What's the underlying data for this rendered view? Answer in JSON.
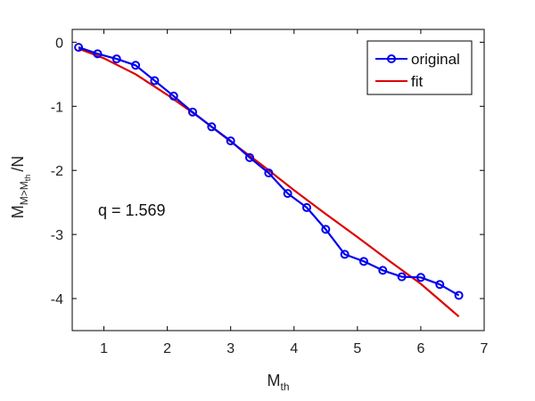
{
  "chart_data": {
    "type": "line",
    "xlabel": {
      "base": "M",
      "sub": "th"
    },
    "ylabel": {
      "base": "M",
      "sub": "M>M",
      "subsub": "th",
      "suffix": "/N"
    },
    "xlim": [
      0.5,
      7
    ],
    "ylim": [
      -4.5,
      0.2
    ],
    "xticks": [
      1,
      2,
      3,
      4,
      5,
      6,
      7
    ],
    "yticks": [
      0,
      -1,
      -2,
      -3,
      -4
    ],
    "xtick_labels": [
      "1",
      "2",
      "3",
      "4",
      "5",
      "6",
      "7"
    ],
    "ytick_labels": [
      "0",
      "-1",
      "-2",
      "-3",
      "-4"
    ],
    "grid": false,
    "legend_position": "top-right",
    "annotation": "q = 1.569",
    "series": [
      {
        "name": "original",
        "color": "#0000ee",
        "marker": "circle",
        "x": [
          0.6,
          0.9,
          1.2,
          1.5,
          1.8,
          2.1,
          2.4,
          2.7,
          3.0,
          3.3,
          3.6,
          3.9,
          4.2,
          4.5,
          4.8,
          5.1,
          5.4,
          5.7,
          6.0,
          6.3,
          6.6
        ],
        "y": [
          -0.08,
          -0.18,
          -0.26,
          -0.36,
          -0.6,
          -0.84,
          -1.09,
          -1.32,
          -1.54,
          -1.8,
          -2.04,
          -2.36,
          -2.58,
          -2.92,
          -3.31,
          -3.42,
          -3.56,
          -3.66,
          -3.67,
          -3.78,
          -3.95
        ]
      },
      {
        "name": "fit",
        "color": "#dd0000",
        "marker": "none",
        "x": [
          0.6,
          1.0,
          1.5,
          2.0,
          2.5,
          3.0,
          3.5,
          4.0,
          4.5,
          5.0,
          5.5,
          6.0,
          6.6
        ],
        "y": [
          -0.1,
          -0.25,
          -0.5,
          -0.82,
          -1.17,
          -1.55,
          -1.92,
          -2.31,
          -2.68,
          -3.04,
          -3.41,
          -3.77,
          -4.28
        ]
      }
    ]
  }
}
